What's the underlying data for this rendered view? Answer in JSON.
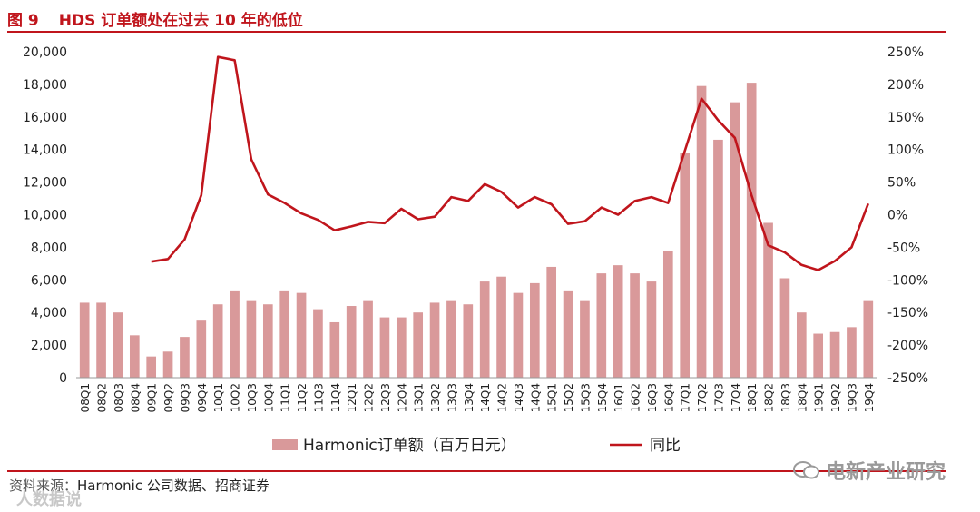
{
  "header": {
    "figure_number": "图 9",
    "title": "HDS 订单额处在过去 10 年的低位"
  },
  "source": {
    "label": "资料来源：",
    "text": "Harmonic 公司数据、招商证券"
  },
  "watermark": {
    "text": "电新产业研究",
    "text2": "人数据说"
  },
  "chart_data": {
    "type": "bar",
    "title": "",
    "categories": [
      "08Q1",
      "08Q2",
      "08Q3",
      "08Q4",
      "09Q1",
      "09Q2",
      "09Q3",
      "09Q4",
      "10Q1",
      "10Q2",
      "10Q3",
      "10Q4",
      "11Q1",
      "11Q2",
      "11Q3",
      "11Q4",
      "12Q1",
      "12Q2",
      "12Q3",
      "12Q4",
      "13Q1",
      "13Q2",
      "13Q3",
      "13Q4",
      "14Q1",
      "14Q2",
      "14Q3",
      "14Q4",
      "15Q1",
      "15Q2",
      "15Q3",
      "15Q4",
      "16Q1",
      "16Q2",
      "16Q3",
      "16Q4",
      "17Q1",
      "17Q2",
      "17Q3",
      "17Q4",
      "18Q1",
      "18Q2",
      "18Q3",
      "18Q4",
      "19Q1",
      "19Q2",
      "19Q3",
      "19Q4"
    ],
    "series": [
      {
        "name": "Harmonic订单额（百万日元）",
        "type": "bar",
        "axis": "left",
        "color": "#d9999a",
        "values": [
          4600,
          4600,
          4000,
          2600,
          1300,
          1600,
          2500,
          3500,
          4500,
          5300,
          4700,
          4500,
          5300,
          5200,
          4200,
          3400,
          4400,
          4700,
          3700,
          3700,
          4000,
          4600,
          4700,
          4500,
          5900,
          6200,
          5200,
          5800,
          6800,
          5300,
          4700,
          6400,
          6900,
          6400,
          5900,
          7800,
          13800,
          17900,
          14600,
          16900,
          18100,
          9500,
          6100,
          4000,
          2700,
          2800,
          3100,
          4700
        ]
      },
      {
        "name": "同比",
        "type": "line",
        "axis": "right",
        "color": "#c0151c",
        "values": [
          null,
          null,
          null,
          null,
          -72,
          -68,
          -38,
          30,
          242,
          237,
          85,
          31,
          18,
          2,
          -8,
          -24,
          -18,
          -11,
          -13,
          9,
          -7,
          -3,
          27,
          21,
          47,
          35,
          11,
          27,
          16,
          -14,
          -10,
          11,
          0,
          21,
          27,
          18,
          98,
          178,
          145,
          118,
          30,
          -47,
          -58,
          -77,
          -85,
          -71,
          -50,
          17
        ]
      }
    ],
    "left_axis": {
      "ylim": [
        0,
        20000
      ],
      "ticks": [
        "0",
        "2,000",
        "4,000",
        "6,000",
        "8,000",
        "10,000",
        "12,000",
        "14,000",
        "16,000",
        "18,000",
        "20,000"
      ]
    },
    "right_axis": {
      "ylim": [
        -250,
        250
      ],
      "ticks": [
        "-250%",
        "-200%",
        "-150%",
        "-100%",
        "-50%",
        "0%",
        "50%",
        "100%",
        "150%",
        "200%",
        "250%"
      ]
    },
    "legend": {
      "position": "bottom",
      "items": [
        "Harmonic订单额（百万日元）",
        "同比"
      ]
    },
    "grid": false
  }
}
